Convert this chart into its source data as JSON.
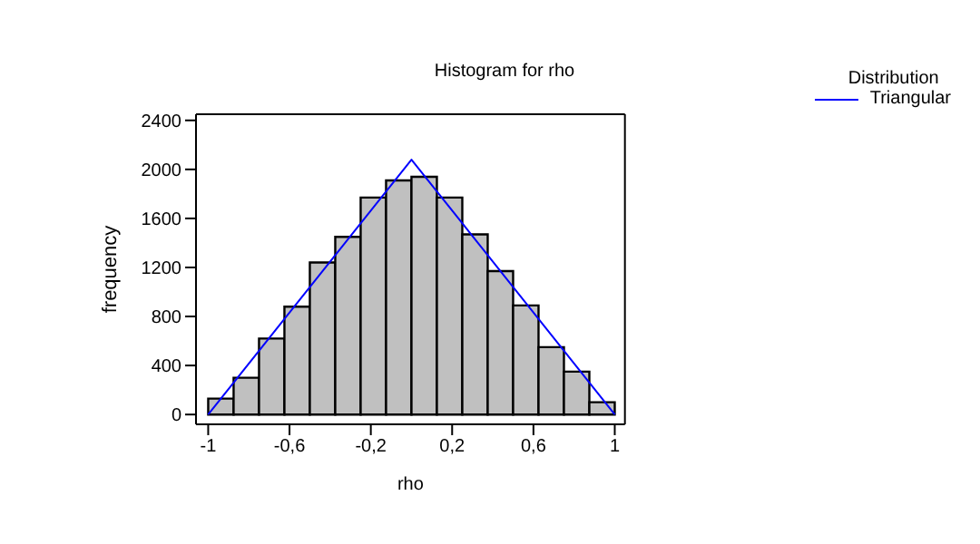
{
  "chart_data": {
    "type": "histogram",
    "title": "Histogram for rho",
    "xlabel": "rho",
    "ylabel": "frequency",
    "legend_title": "Distribution",
    "bins": [
      -1,
      -0.875,
      -0.75,
      -0.625,
      -0.5,
      -0.375,
      -0.25,
      -0.125,
      0,
      0.125,
      0.25,
      0.375,
      0.5,
      0.625,
      0.75,
      0.875,
      1
    ],
    "values": [
      130,
      300,
      620,
      880,
      1240,
      1450,
      1770,
      1910,
      1940,
      1770,
      1470,
      1170,
      890,
      550,
      350,
      100
    ],
    "color": "#c0c0c0",
    "series": [
      {
        "type": "line",
        "name": "Triangular",
        "color": "#0000ff",
        "x": [
          -1,
          0,
          1
        ],
        "values": [
          0,
          2080,
          0
        ]
      }
    ],
    "xlim": [
      -1.06,
      1.05
    ],
    "ylim": [
      -80,
      2450
    ],
    "xticks": [
      -1,
      {
        "value": -0.6,
        "label": "-0,6"
      },
      {
        "value": -0.2,
        "label": "-0,2"
      },
      {
        "value": 0.2,
        "label": "0,2"
      },
      {
        "value": 0.6,
        "label": "0,6"
      },
      1
    ],
    "yticks": [
      0,
      400,
      800,
      1200,
      1600,
      2000,
      2400
    ],
    "legend": "top right",
    "marker": "none"
  }
}
